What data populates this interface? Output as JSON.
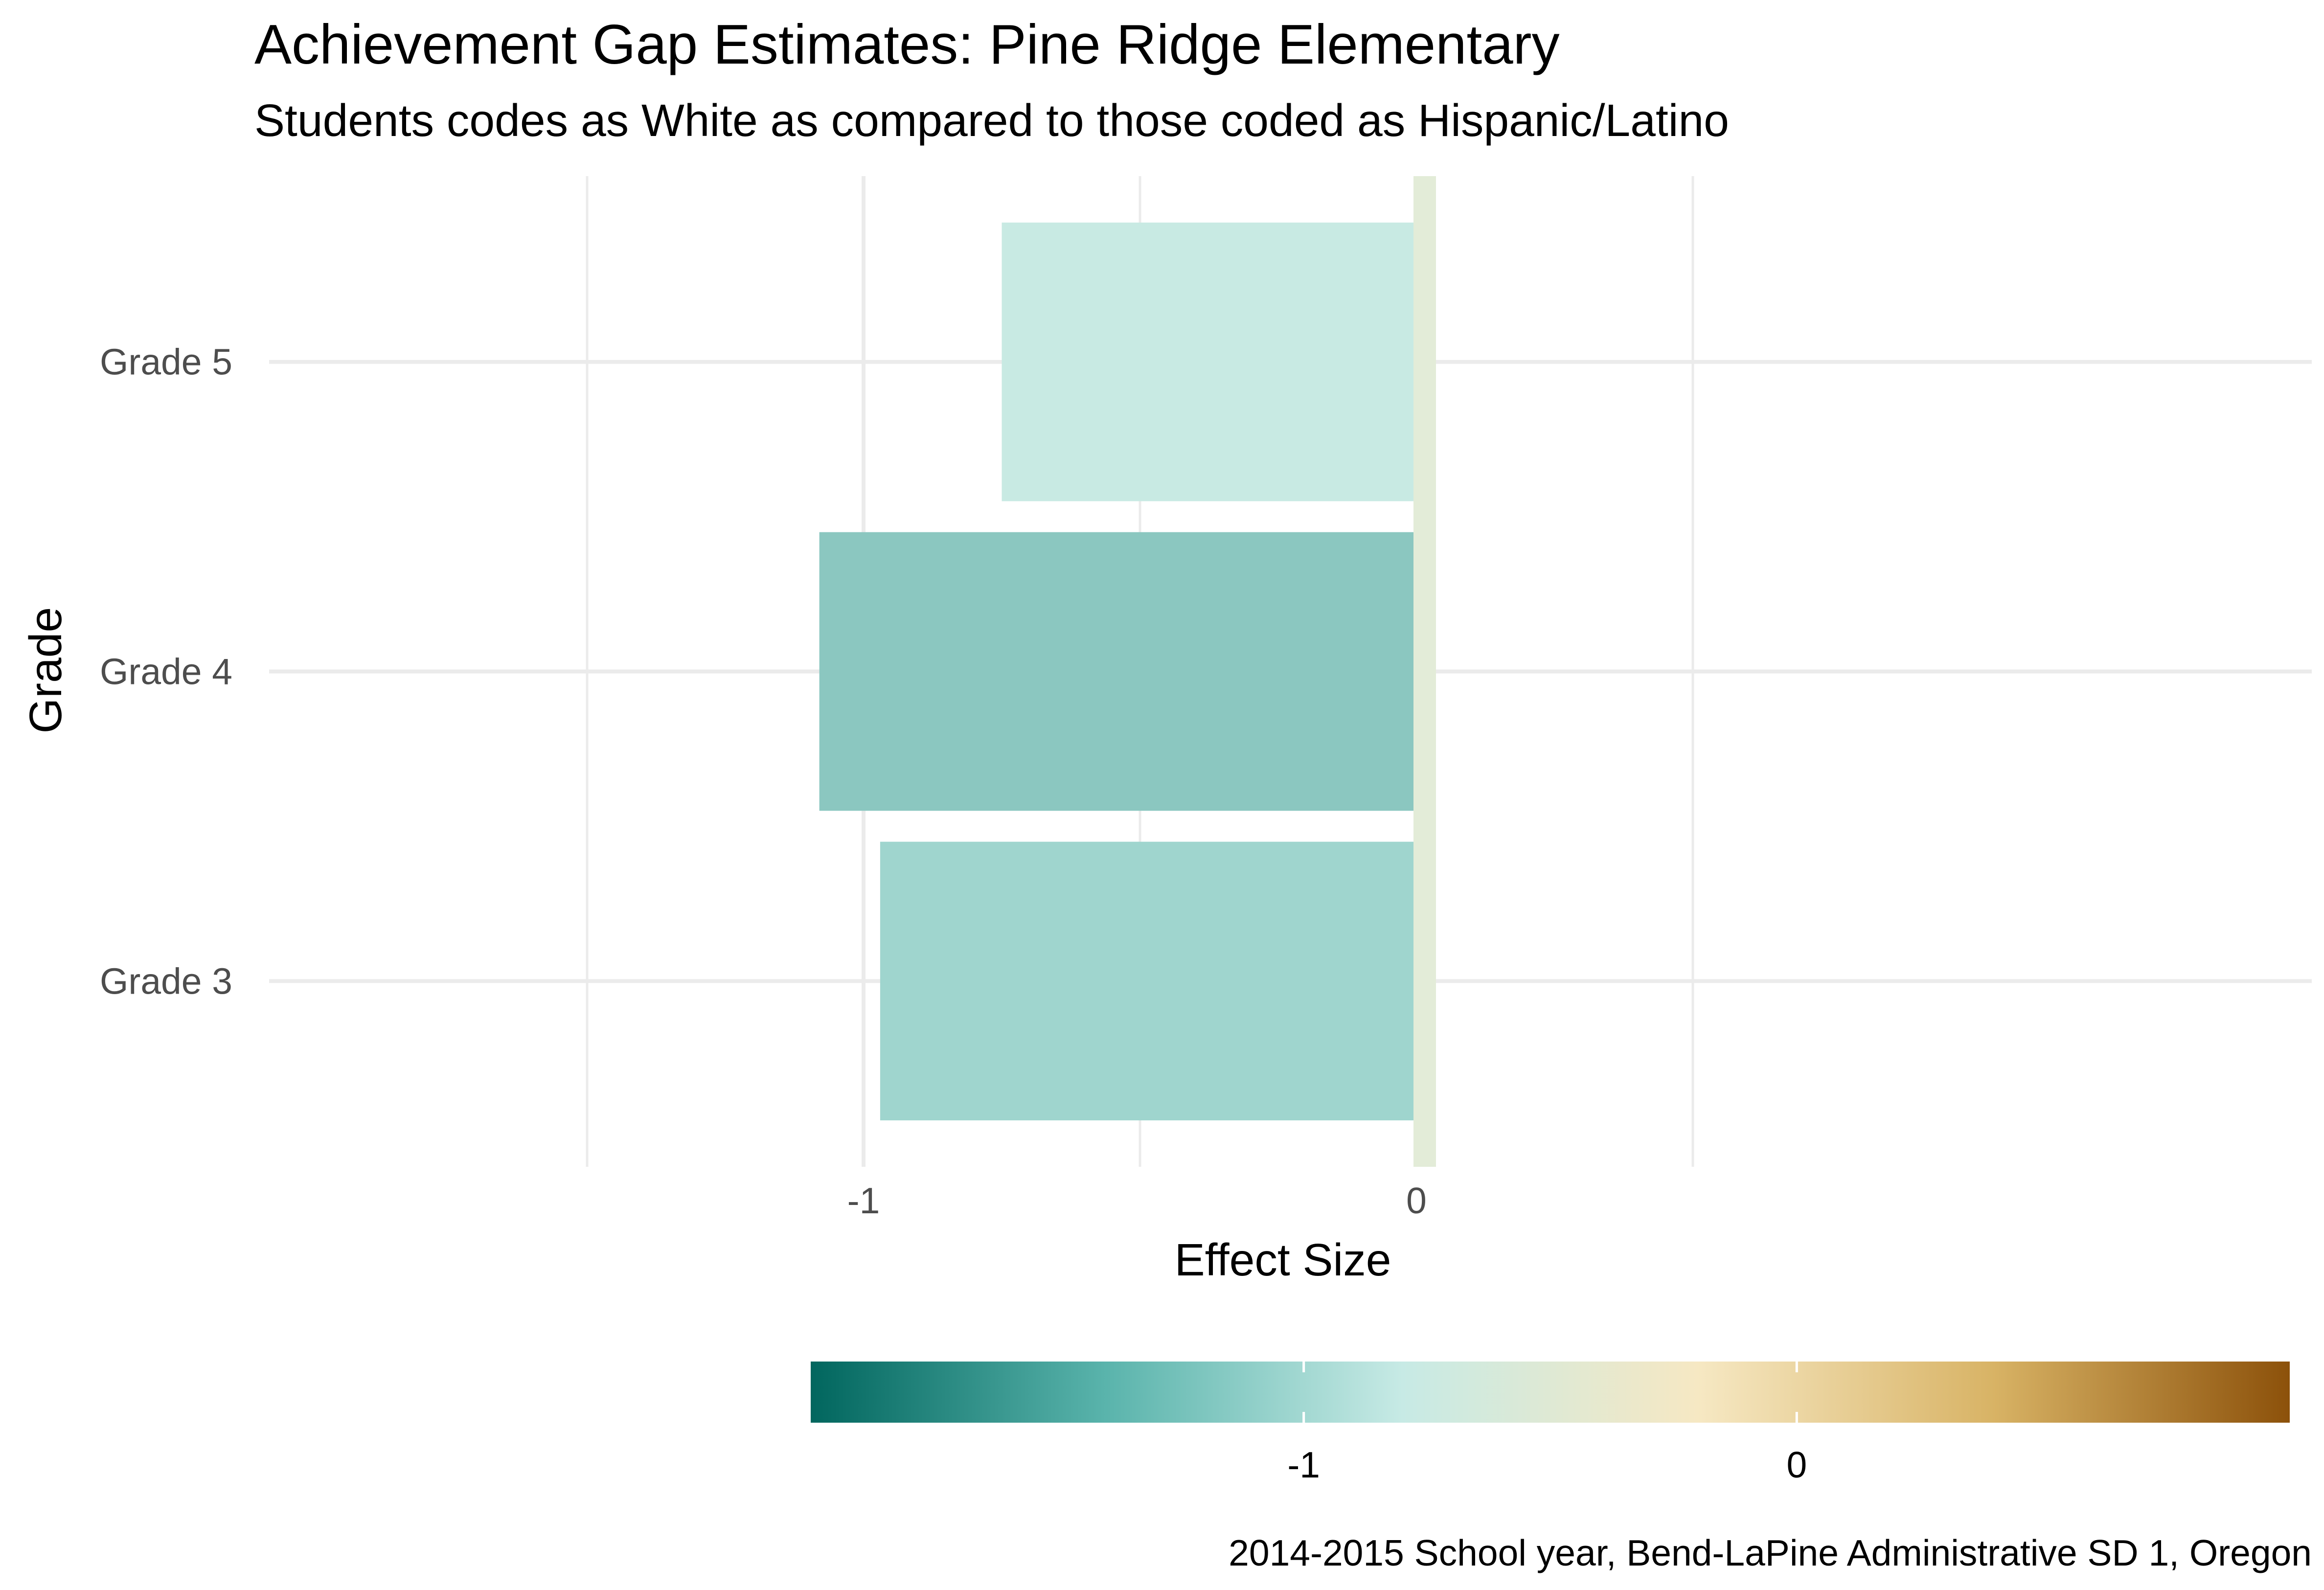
{
  "chart_data": {
    "type": "bar",
    "orientation": "horizontal",
    "title": "Achievement Gap Estimates: Pine Ridge Elementary",
    "subtitle": "Students codes as White as compared to those coded as Hispanic/Latino",
    "caption": "2014-2015 School year, Bend-LaPine Administrative SD 1, Oregon",
    "xlabel": "Effect Size",
    "ylabel": "Grade",
    "categories": [
      "Grade 3",
      "Grade 4",
      "Grade 5"
    ],
    "values": [
      -0.97,
      -1.08,
      -0.75
    ],
    "bar_colors": [
      "#9fd5ce",
      "#8bc7c0",
      "#c8eae3"
    ],
    "reference_value": 0,
    "reference_color": "#e3ecd8",
    "xlim": [
      -1.5,
      1.0
    ],
    "x_ticks": [
      -1,
      0
    ],
    "x_tick_labels": [
      "-1",
      "0"
    ],
    "x_minor_gridlines": [
      -1.5,
      -0.5,
      0.5
    ],
    "grid": true,
    "legend": {
      "type": "colorbar",
      "position": "bottom",
      "range": [
        -2.0,
        1.0
      ],
      "ticks": [
        -1,
        0
      ],
      "tick_labels": [
        "-1",
        "0"
      ],
      "colors": [
        "#01665e",
        "#5ab4ac",
        "#c7eae5",
        "#f6e8c3",
        "#d8b365",
        "#8c510a"
      ]
    }
  }
}
